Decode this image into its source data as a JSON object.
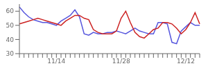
{
  "chart_data": {
    "type": "line",
    "categories": [
      null,
      null,
      null,
      null,
      null,
      null,
      null,
      null,
      "11/14",
      null,
      null,
      null,
      null,
      null,
      null,
      null,
      null,
      null,
      null,
      null,
      null,
      null,
      "11/28",
      null,
      null,
      null,
      null,
      null,
      null,
      null,
      null,
      null,
      null,
      null,
      null,
      null,
      "12/12",
      null,
      null,
      null
    ],
    "series": [
      {
        "color": "#5555dd",
        "values": [
          63,
          59,
          56,
          54,
          53,
          52,
          52,
          51,
          50,
          53,
          55,
          57,
          61,
          56,
          44,
          43,
          45,
          44,
          44,
          45,
          45,
          46,
          45,
          44,
          46,
          48,
          46,
          45,
          44,
          44,
          52,
          52,
          51,
          38,
          37,
          46,
          49,
          52,
          50,
          50
        ]
      },
      {
        "color": "#cc2222",
        "values": [
          51,
          52,
          53,
          54,
          55,
          54,
          53,
          52,
          51,
          50,
          53,
          55,
          57,
          57,
          55,
          54,
          47,
          45,
          44,
          44,
          44,
          46,
          55,
          60,
          52,
          45,
          42,
          41,
          44,
          47,
          48,
          52,
          52,
          51,
          48,
          44,
          47,
          52,
          59,
          51
        ]
      }
    ],
    "ylim": [
      30,
      65
    ],
    "yticks": [
      30,
      40,
      50,
      60
    ],
    "grid": false
  }
}
